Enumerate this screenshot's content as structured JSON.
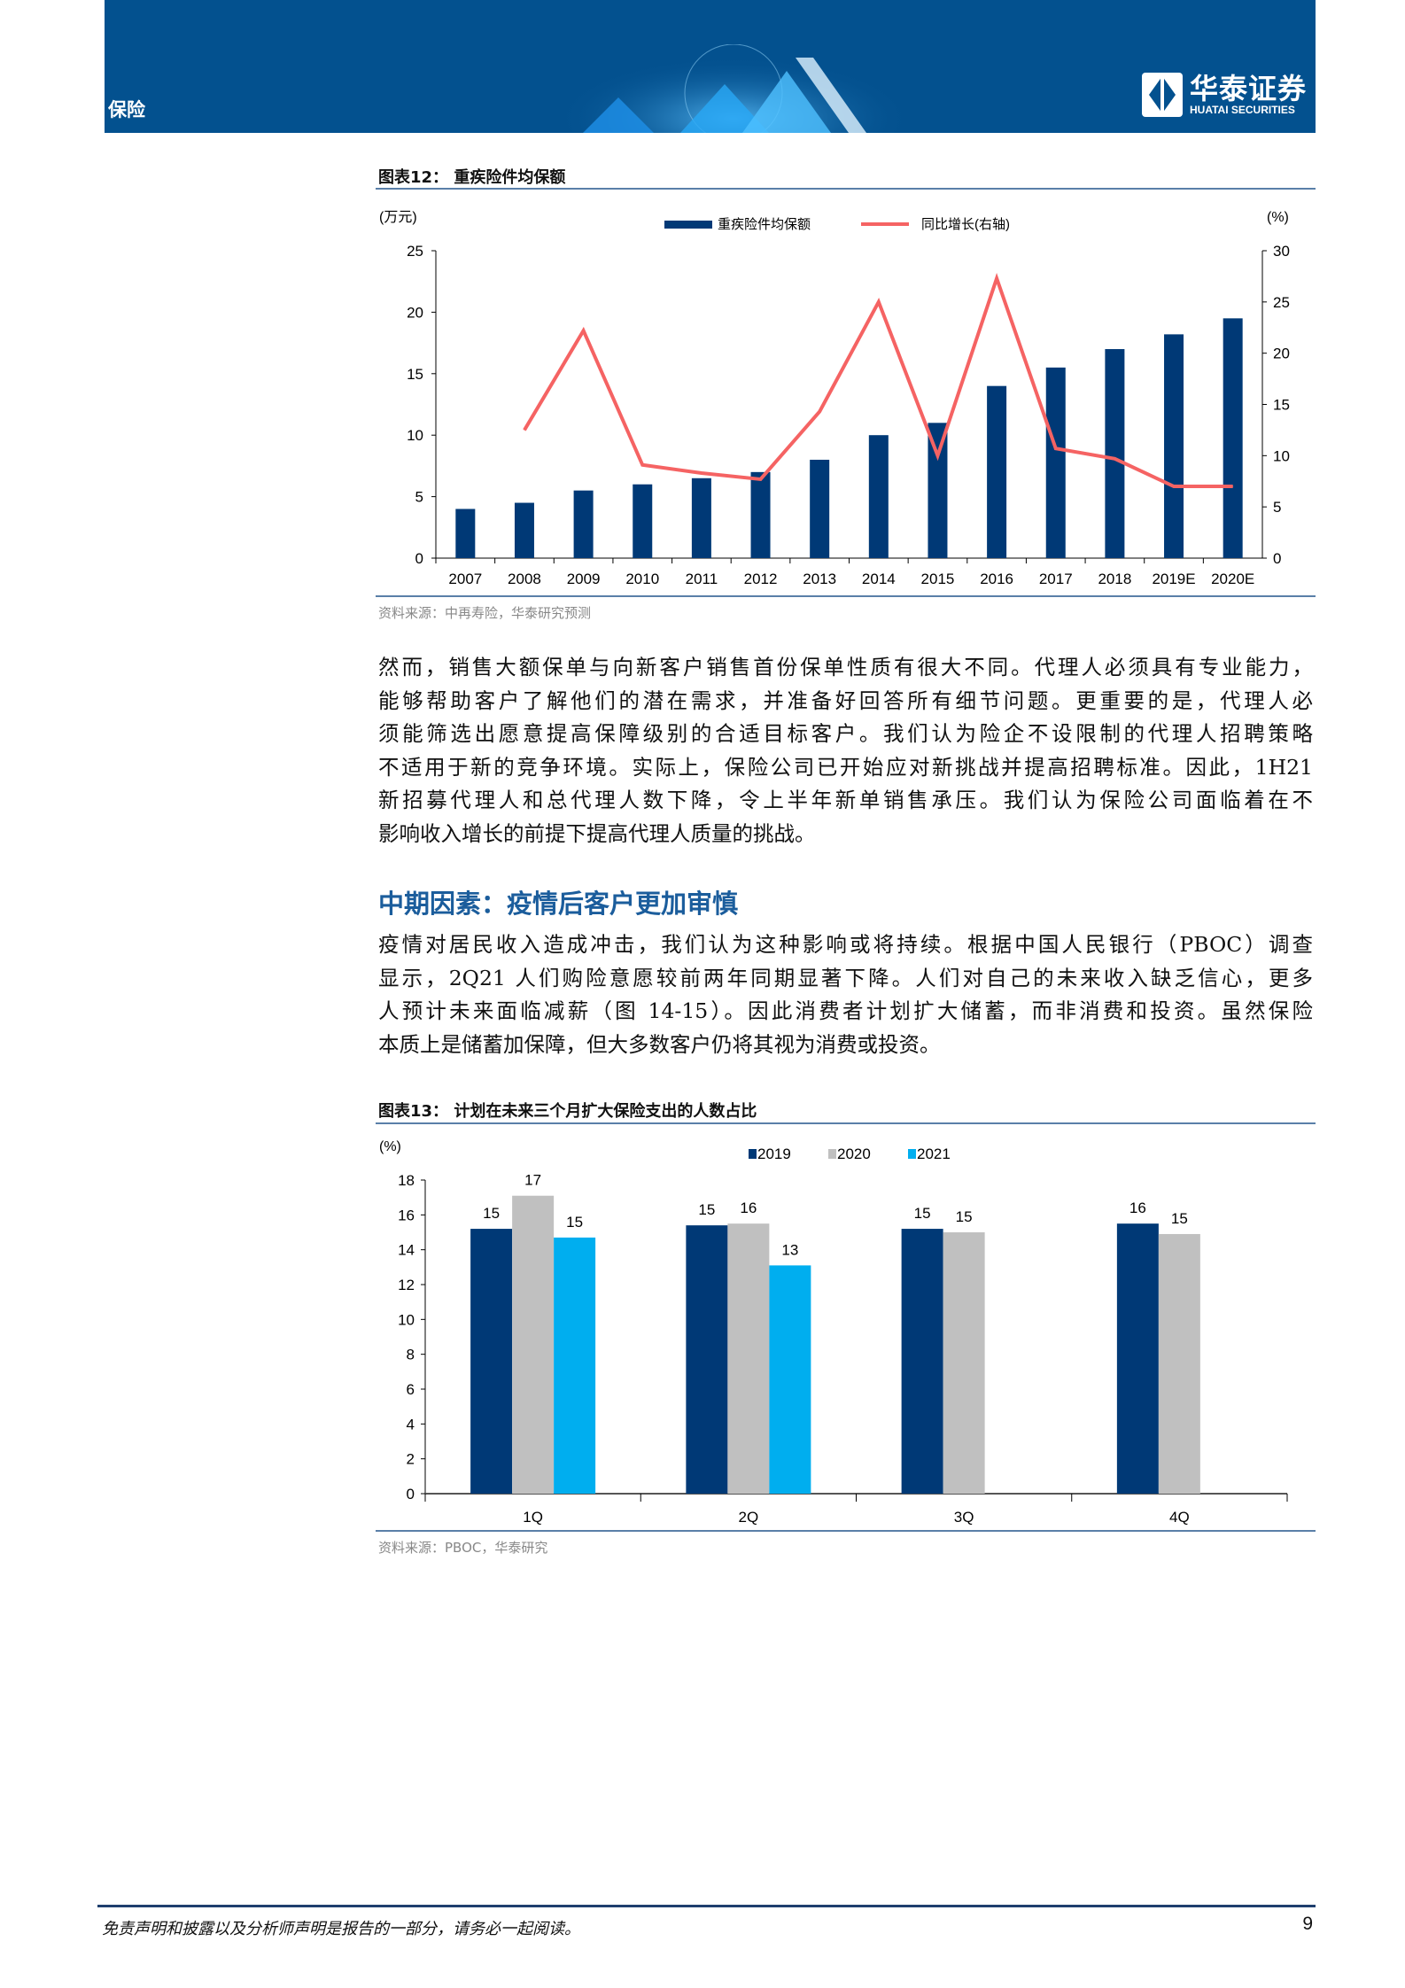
{
  "header": {
    "section": "保险",
    "logo_cn": "华泰证券",
    "logo_en": "HUATAI SECURITIES",
    "brand_color": "#03518f"
  },
  "figure12": {
    "title": "图表12：  重疾险件均保额",
    "source": "资料来源：中再寿险，华泰研究预测",
    "chart_data": {
      "type": "bar+line",
      "left_unit": "(万元)",
      "right_unit": "(%)",
      "categories": [
        "2007",
        "2008",
        "2009",
        "2010",
        "2011",
        "2012",
        "2013",
        "2014",
        "2015",
        "2016",
        "2017",
        "2018",
        "2019E",
        "2020E"
      ],
      "series": [
        {
          "name": "重疾险件均保额",
          "type": "bar",
          "axis": "left",
          "color": "#003976",
          "values": [
            4,
            4.5,
            5.5,
            6,
            6.5,
            7,
            8,
            10,
            11,
            14,
            15.5,
            17,
            18.2,
            19.5
          ]
        },
        {
          "name": "同比增长(右轴)",
          "type": "line",
          "axis": "right",
          "color": "#f56363",
          "values": [
            null,
            12.5,
            22.2,
            9.1,
            8.3,
            7.7,
            14.3,
            25,
            10,
            27.3,
            10.7,
            9.7,
            7,
            7
          ]
        }
      ],
      "left_ylim": [
        0,
        25
      ],
      "left_ticks": [
        "0",
        "5",
        "10",
        "15",
        "20",
        "25"
      ],
      "right_ylim": [
        0,
        30
      ],
      "right_ticks": [
        "0",
        "5",
        "10",
        "15",
        "20",
        "25",
        "30"
      ],
      "legend": "top-center",
      "grid": false
    }
  },
  "paragraph1": [
    "然而，销售大额保单与向新客户销售首份保单性质有很大不同。代理人必须具有专业能力，",
    "能够帮助客户了解他们的潜在需求，并准备好回答所有细节问题。更重要的是，代理人必",
    "须能筛选出愿意提高保障级别的合适目标客户。我们认为险企不设限制的代理人招聘策略",
    "不适用于新的竞争环境。实际上，保险公司已开始应对新挑战并提高招聘标准。因此，1H21",
    "新招募代理人和总代理人数下降，令上半年新单销售承压。我们认为保险公司面临着在不",
    "影响收入增长的前提下提高代理人质量的挑战。"
  ],
  "heading": "中期因素：疫情后客户更加审慎",
  "paragraph2": [
    "疫情对居民收入造成冲击，我们认为这种影响或将持续。根据中国人民银行（PBOC）调查",
    "显示，2Q21 人们购险意愿较前两年同期显著下降。人们对自己的未来收入缺乏信心，更多",
    "人预计未来面临减薪（图 14-15）。因此消费者计划扩大储蓄，而非消费和投资。虽然保险",
    "本质上是储蓄加保障，但大多数客户仍将其视为消费或投资。"
  ],
  "figure13": {
    "title": "图表13：  计划在未来三个月扩大保险支出的人数占比",
    "source": "资料来源：PBOC，华泰研究",
    "chart_data": {
      "type": "bar",
      "unit": "(%)",
      "categories": [
        "1Q",
        "2Q",
        "3Q",
        "4Q"
      ],
      "series": [
        {
          "name": "2019",
          "color": "#003976",
          "values": [
            15.2,
            15.4,
            15.2,
            15.5
          ],
          "labels": [
            "15",
            "15",
            "15",
            "16"
          ]
        },
        {
          "name": "2020",
          "color": "#c0c0c0",
          "values": [
            17.1,
            15.5,
            15.0,
            14.9
          ],
          "labels": [
            "17",
            "16",
            "15",
            "15"
          ]
        },
        {
          "name": "2021",
          "color": "#00aeef",
          "values": [
            14.7,
            13.1,
            null,
            null
          ],
          "labels": [
            "15",
            "13",
            "",
            ""
          ]
        }
      ],
      "ylim": [
        0,
        18
      ],
      "ticks": [
        "0",
        "2",
        "4",
        "6",
        "8",
        "10",
        "12",
        "14",
        "16",
        "18"
      ],
      "legend": "top-center",
      "grid": false
    }
  },
  "footer": {
    "disclaimer": "免责声明和披露以及分析师声明是报告的一部分，请务必一起阅读。",
    "page": "9"
  }
}
